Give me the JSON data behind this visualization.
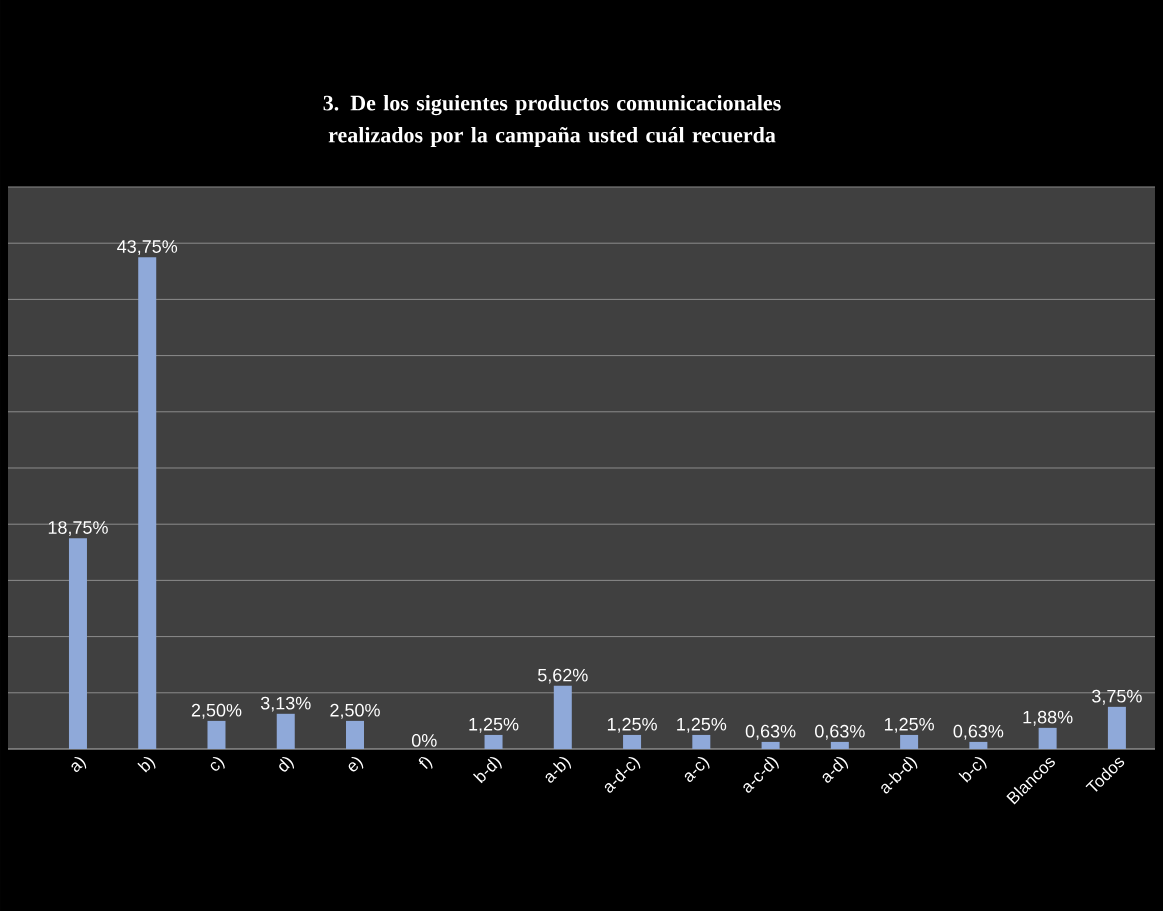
{
  "chart_data": {
    "type": "bar",
    "title": "3. De los siguientes productos comunicacionales realizados por la campaña usted cuál recuerda",
    "categories": [
      "a)",
      "b)",
      "c)",
      "d)",
      "e)",
      "f)",
      "b-d)",
      "a-b)",
      "a-d-c)",
      "a-c)",
      "a-c-d)",
      "a-d)",
      "a-b-d)",
      "b-c)",
      "Blancos",
      "Todos"
    ],
    "values": [
      18.75,
      43.75,
      2.5,
      3.13,
      2.5,
      0,
      1.25,
      5.62,
      1.25,
      1.25,
      0.63,
      0.63,
      1.25,
      0.63,
      1.88,
      3.75
    ],
    "value_labels": [
      "18,75%",
      "43,75%",
      "2,50%",
      "3,13%",
      "2,50%",
      "0%",
      "1,25%",
      "5,62%",
      "1,25%",
      "1,25%",
      "0,63%",
      "0,63%",
      "1,25%",
      "0,63%",
      "1,88%",
      "3,75%"
    ],
    "color": "#8fa9d9",
    "ylim": [
      0,
      50
    ],
    "yticks": [
      {
        "value": 0,
        "label": null
      },
      {
        "value": 5,
        "label": null
      },
      {
        "value": 10,
        "label": null
      },
      {
        "value": 15,
        "label": null
      },
      {
        "value": 20,
        "label": null
      },
      {
        "value": 25,
        "label": null
      },
      {
        "value": 30,
        "label": null
      },
      {
        "value": 35,
        "label": null
      },
      {
        "value": 40,
        "label": null
      },
      {
        "value": 45,
        "label": null
      },
      {
        "value": 50,
        "label": null
      }
    ],
    "grid": "y",
    "tick_labels": "x"
  }
}
